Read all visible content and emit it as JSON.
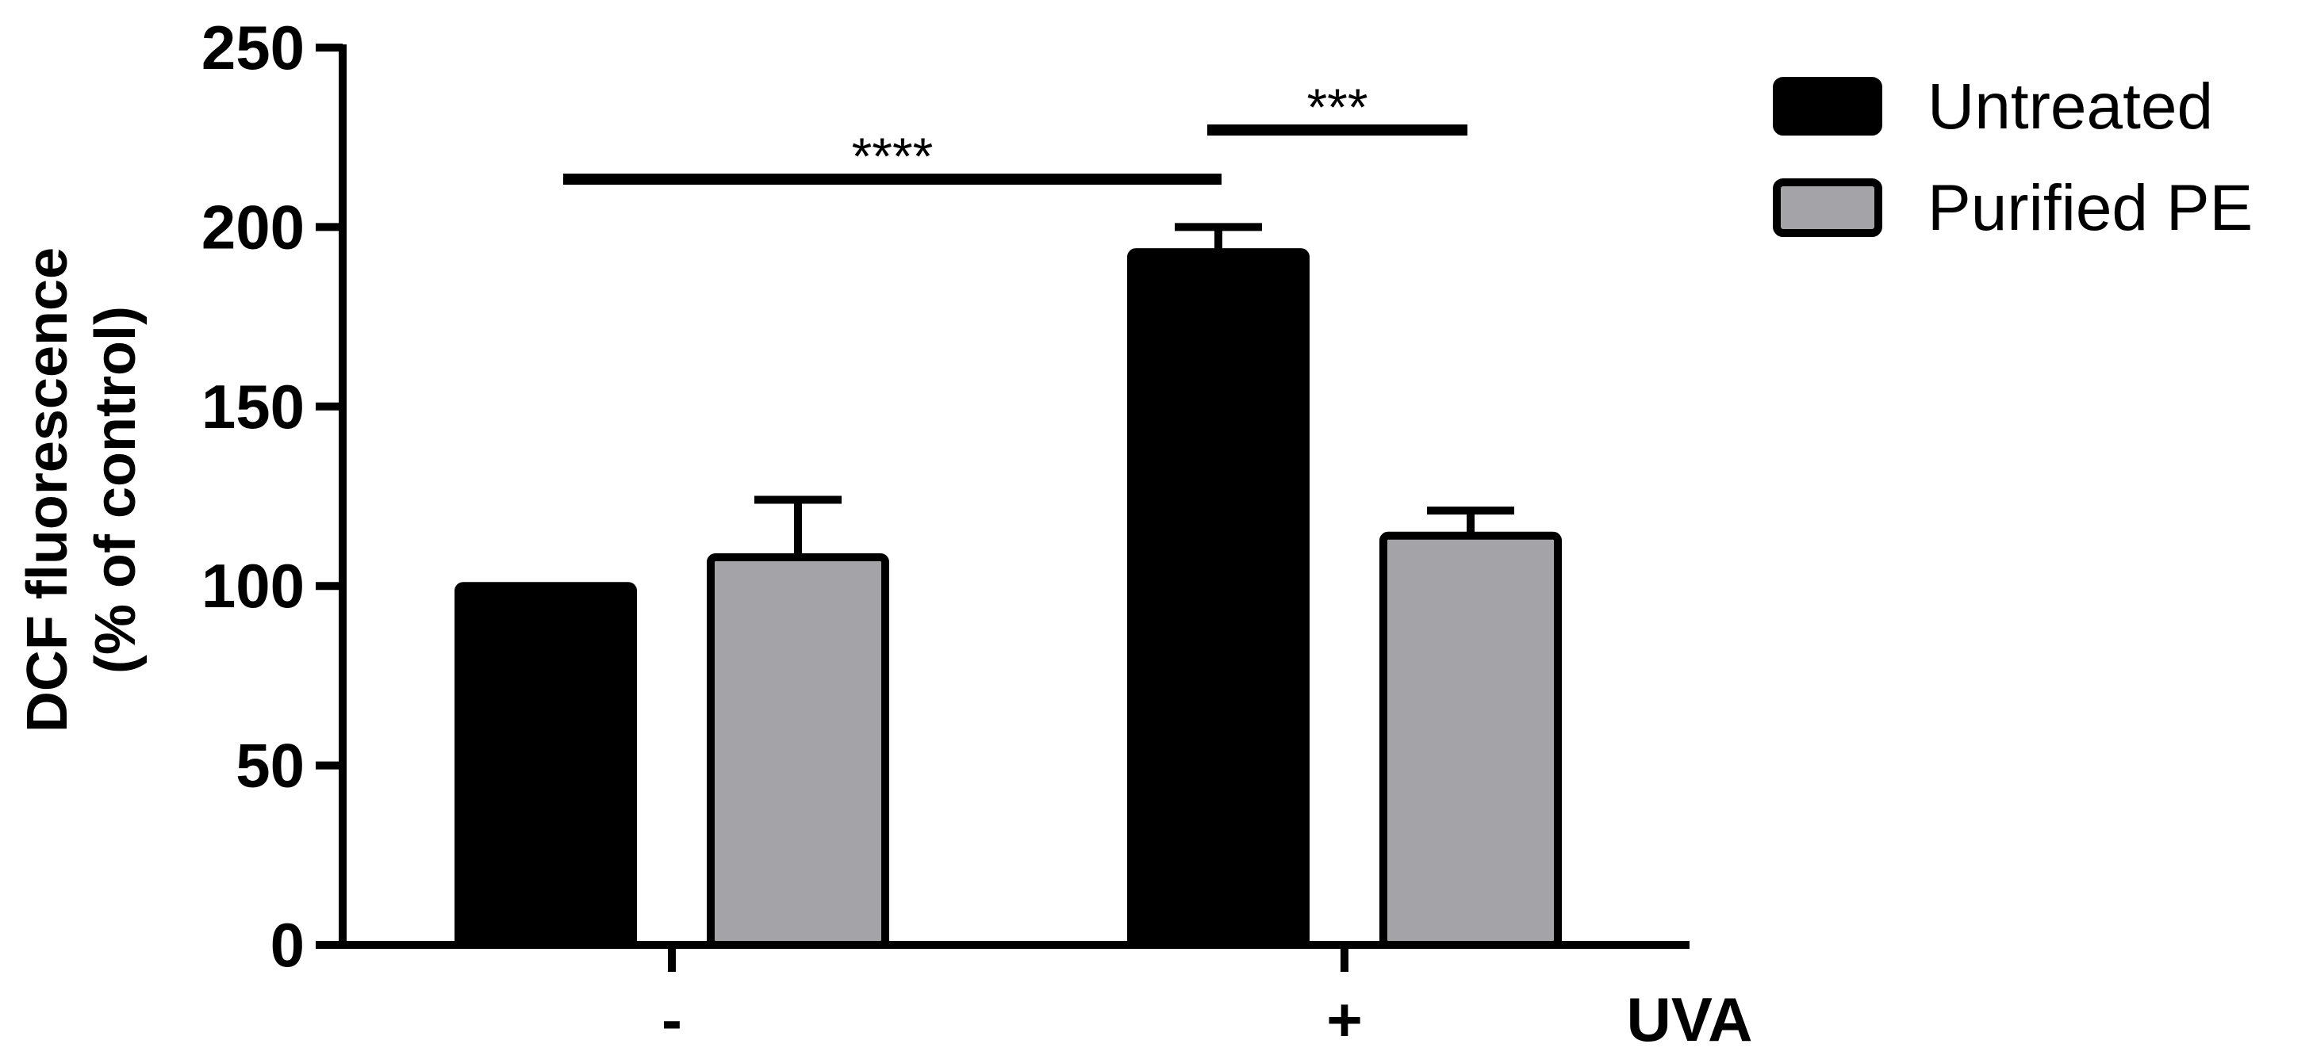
{
  "chart_data": {
    "type": "bar",
    "categories": [
      "-",
      "+"
    ],
    "x_suffix_label": "UVA",
    "ylabel_line1": "DCF fluorescence",
    "ylabel_line2": "(% of control)",
    "ylim": [
      0,
      250
    ],
    "yticks": [
      0,
      50,
      100,
      150,
      200,
      250
    ],
    "series": [
      {
        "name": "Untreated",
        "color": "#000000",
        "values": [
          100,
          193
        ],
        "errors": [
          0,
          7
        ]
      },
      {
        "name": "Purified PE",
        "color": "#a3a3a8",
        "values": [
          108,
          114
        ],
        "errors": [
          16,
          7
        ]
      }
    ],
    "legend_position": "top-right",
    "significance": [
      {
        "label": "****",
        "from": [
          0,
          0
        ],
        "to": [
          1,
          0
        ]
      },
      {
        "label": "***",
        "from": [
          1,
          0
        ],
        "to": [
          1,
          1
        ]
      }
    ],
    "grid": false
  }
}
